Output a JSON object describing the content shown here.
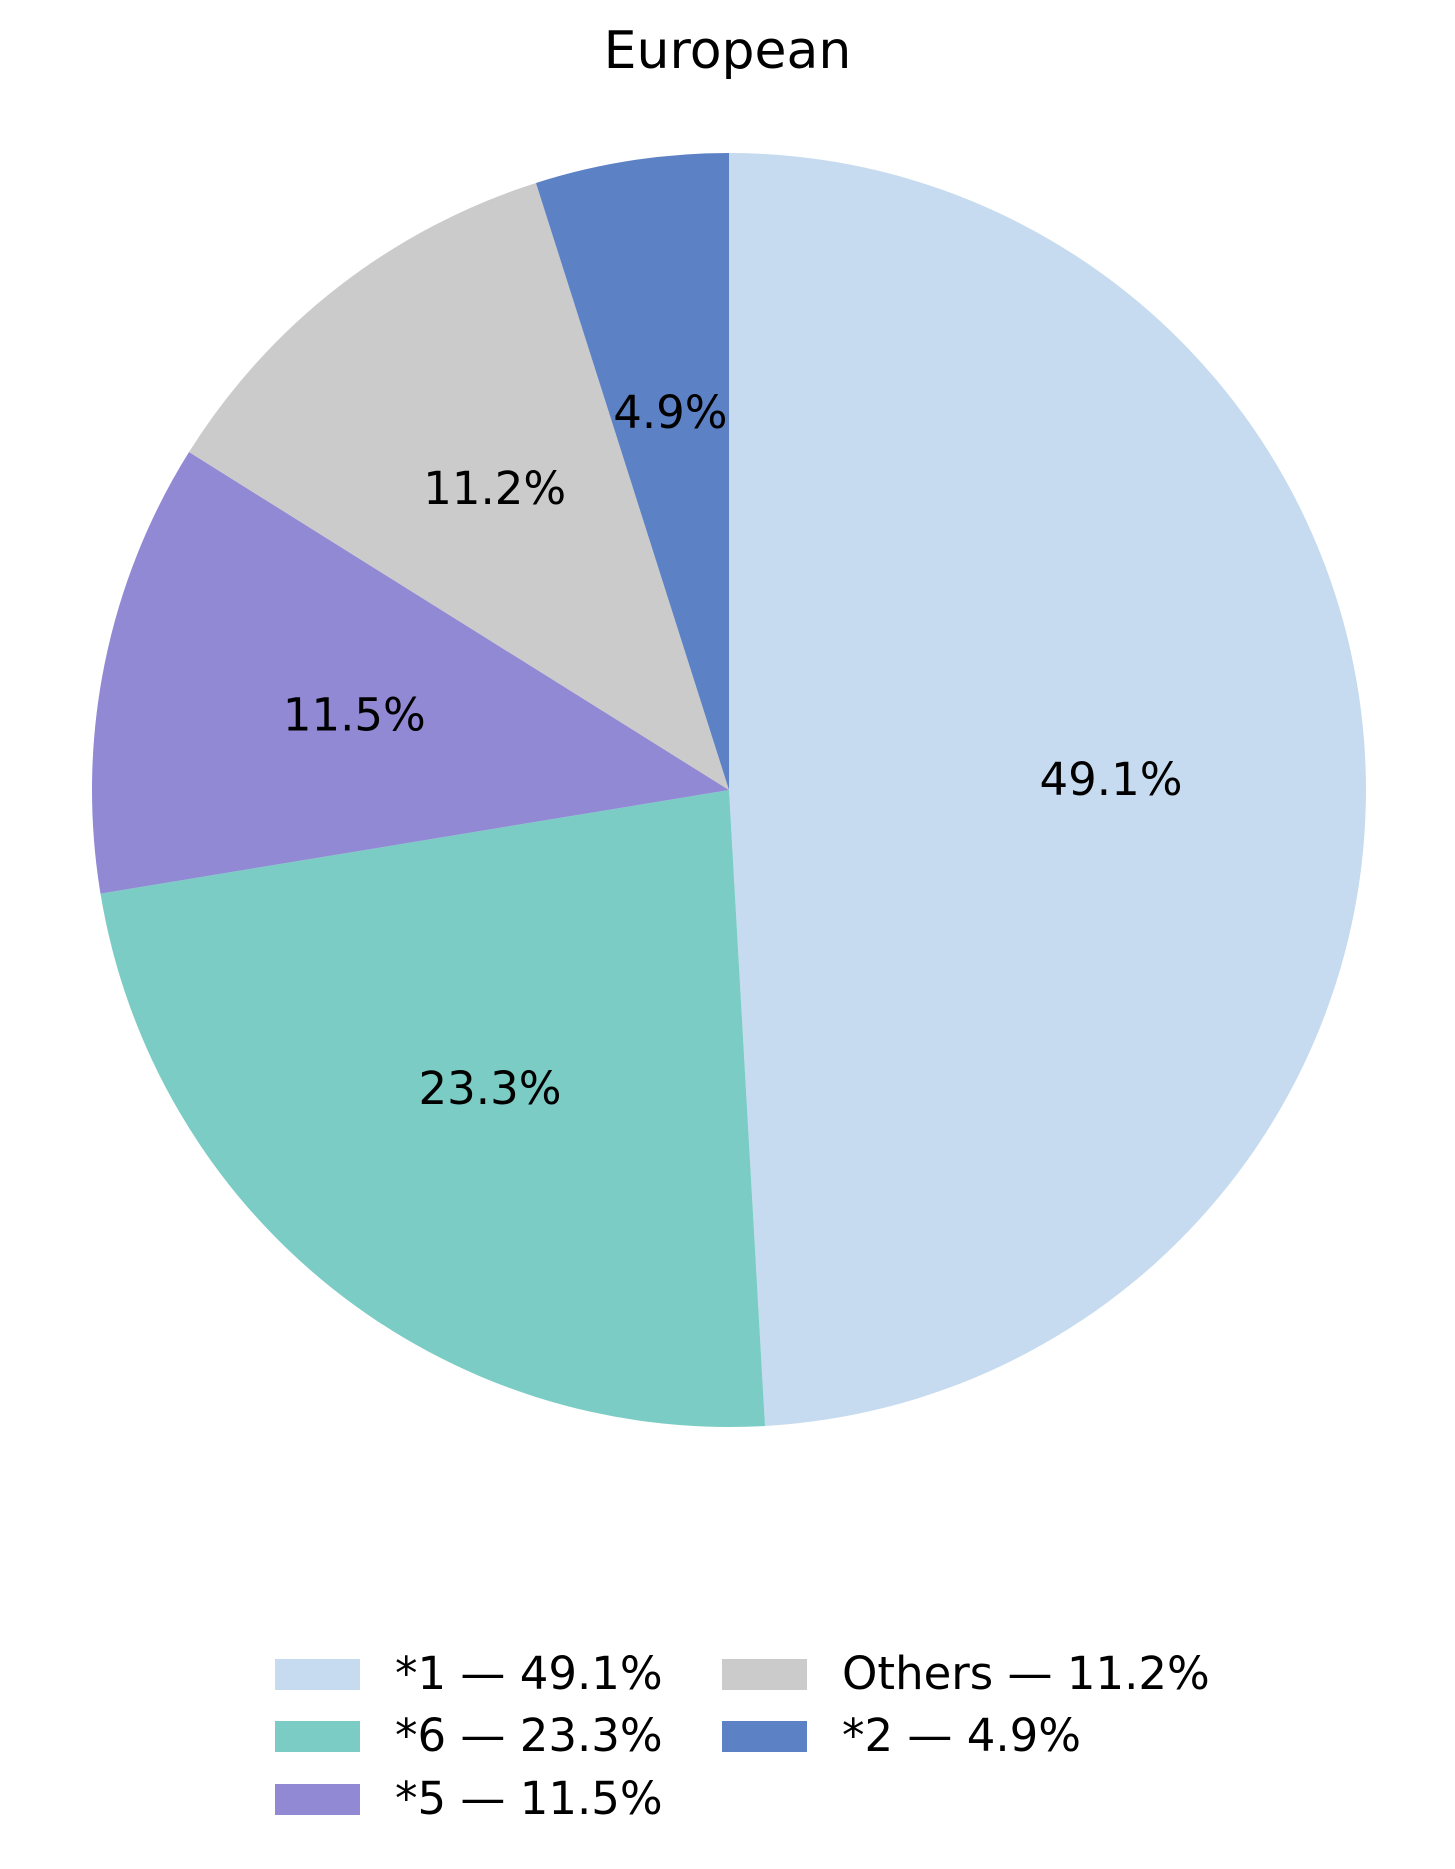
{
  "figure": {
    "background": "#ffffff",
    "text_color": "#000000"
  },
  "chart_data": {
    "type": "pie",
    "title": "European",
    "start_angle_deg": 90,
    "direction": "clockwise",
    "label_distance": 0.6,
    "grid": false,
    "legend_position": "bottom",
    "legend_columns": 2,
    "legend_column_split": 3,
    "slices": [
      {
        "label": "*1",
        "value": 49.1,
        "pct_label": "49.1%",
        "legend_label": "*1 — 49.1%",
        "color": "#C6DBEF"
      },
      {
        "label": "*6",
        "value": 23.3,
        "pct_label": "23.3%",
        "legend_label": "*6 — 23.3%",
        "color": "#7ACCC4"
      },
      {
        "label": "*5",
        "value": 11.5,
        "pct_label": "11.5%",
        "legend_label": "*5 — 11.5%",
        "color": "#9189D4"
      },
      {
        "label": "Others",
        "value": 11.2,
        "pct_label": "11.2%",
        "legend_label": "Others — 11.2%",
        "color": "#CBCBCB"
      },
      {
        "label": "*2",
        "value": 4.9,
        "pct_label": "4.9%",
        "legend_label": "*2 — 4.9%",
        "color": "#5C81C5"
      }
    ]
  }
}
